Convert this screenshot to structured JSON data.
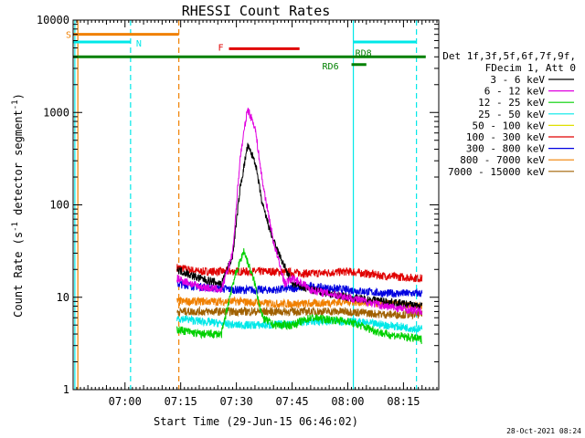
{
  "chart_data": {
    "type": "line",
    "title": "RHESSI Count Rates",
    "xlabel": "Start Time (29-Jun-15 06:46:02)",
    "ylabel": "Count Rate (s",
    "ylabel_sup": "-1",
    "ylabel_rest": " detector segment",
    "ylabel_sup2": "-1",
    "ylabel_end": ")",
    "x_ticks": [
      "07:00",
      "07:15",
      "07:30",
      "07:45",
      "08:00",
      "08:15"
    ],
    "x_tick_minutes": [
      420,
      435,
      450,
      465,
      480,
      495
    ],
    "xlim_minutes": [
      406.03,
      504.5
    ],
    "y_scale": "log",
    "ylim": [
      1,
      10000
    ],
    "y_ticks": [
      "1",
      "10",
      "100",
      "1000",
      "10000"
    ],
    "y_tick_values": [
      1,
      10,
      100,
      1000,
      10000
    ],
    "legend": {
      "header": [
        "Det 1f,3f,5f,6f,7f,9f,",
        "FDecim 1, Att 0"
      ],
      "entries": [
        {
          "label": "3 - 6 keV",
          "color": "#000000"
        },
        {
          "label": "6 - 12 keV",
          "color": "#e000e0"
        },
        {
          "label": "12 - 25 keV",
          "color": "#00d000"
        },
        {
          "label": "25 - 50 keV",
          "color": "#00e8e8"
        },
        {
          "label": "50 - 100 keV",
          "color": "#e0e000"
        },
        {
          "label": "100 - 300 keV",
          "color": "#e00000"
        },
        {
          "label": "300 - 800 keV",
          "color": "#0000e0"
        },
        {
          "label": "800 - 7000 keV",
          "color": "#f08000"
        },
        {
          "label": "7000 - 15000 keV",
          "color": "#a06000"
        }
      ]
    },
    "series": [
      {
        "name": "100 - 300 keV",
        "color": "#e00000",
        "x": [
          434,
          440,
          450,
          460,
          470,
          480,
          490,
          500
        ],
        "y": [
          21,
          19,
          19,
          19,
          18,
          19,
          17,
          16
        ]
      },
      {
        "name": "300 - 800 keV",
        "color": "#0000e0",
        "x": [
          434,
          440,
          450,
          460,
          470,
          480,
          490,
          500
        ],
        "y": [
          14,
          13,
          12,
          12,
          13,
          12,
          11,
          11
        ]
      },
      {
        "name": "800 - 7000 keV",
        "color": "#f08000",
        "x": [
          434,
          440,
          450,
          460,
          470,
          480,
          490,
          500
        ],
        "y": [
          9,
          9,
          9,
          8.5,
          8.5,
          9,
          8.5,
          8
        ]
      },
      {
        "name": "7000 - 15000 keV",
        "color": "#a06000",
        "x": [
          434,
          440,
          450,
          460,
          470,
          480,
          490,
          500
        ],
        "y": [
          7,
          7,
          7,
          7,
          7,
          7,
          6.5,
          6.5
        ]
      },
      {
        "name": "25 - 50 keV",
        "color": "#00e8e8",
        "x": [
          434,
          440,
          450,
          460,
          470,
          480,
          490,
          500
        ],
        "y": [
          6,
          5.5,
          5,
          5,
          5.5,
          5.5,
          5,
          4.5
        ]
      },
      {
        "name": "12 - 25 keV",
        "color": "#00d000",
        "x": [
          434,
          440,
          446,
          449,
          452,
          455,
          457,
          460,
          465,
          470,
          480,
          490,
          500
        ],
        "y": [
          4.5,
          4,
          4,
          14,
          32,
          14,
          6,
          5,
          5,
          6,
          5.5,
          4,
          3.5
        ]
      },
      {
        "name": "3 - 6 keV",
        "color": "#000000",
        "x": [
          434,
          440,
          446,
          449,
          451,
          453,
          455,
          457,
          460,
          465,
          470,
          480,
          490,
          500
        ],
        "y": [
          20,
          16,
          14,
          28,
          150,
          430,
          300,
          100,
          40,
          14,
          12,
          10,
          9,
          8
        ]
      },
      {
        "name": "6 - 12 keV",
        "color": "#e000e0",
        "x": [
          434,
          440,
          446,
          449,
          451,
          453,
          455,
          457,
          460,
          463,
          465,
          468,
          470,
          480,
          490,
          500
        ],
        "y": [
          16,
          13,
          12,
          30,
          320,
          1100,
          700,
          180,
          40,
          14,
          16,
          14,
          12,
          10,
          8,
          7
        ]
      }
    ],
    "attenuator_bars": [
      {
        "label": "S",
        "color": "#f08000",
        "x_start": 406.03,
        "x_end": 434.5,
        "level": 7000
      },
      {
        "label": "N",
        "color": "#00e8e8",
        "x_start": 406.03,
        "x_end": 421.5,
        "level": 5800
      },
      {
        "label": "N",
        "color": "#00e8e8",
        "x_start": 481.5,
        "x_end": 498.5,
        "level": 5800
      },
      {
        "label": "F",
        "color": "#e00000",
        "x_start": 448.0,
        "x_end": 467.0,
        "level": 4900
      },
      {
        "label": "RD8",
        "color": "#008000",
        "x_start": 406.03,
        "x_end": 501.0,
        "level": 4000
      },
      {
        "label": "RD6",
        "color": "#008000",
        "x_start": 481.0,
        "x_end": 485.0,
        "level": 3300
      }
    ],
    "vertical_lines": [
      {
        "color": "#00e8e8",
        "x": 406.5,
        "style": "solid"
      },
      {
        "color": "#f08000",
        "x": 407.3,
        "style": "solid"
      },
      {
        "color": "#00e8e8",
        "x": 421.5,
        "style": "dashed"
      },
      {
        "color": "#f08000",
        "x": 434.5,
        "style": "dashed"
      },
      {
        "color": "#00e8e8",
        "x": 481.5,
        "style": "solid"
      },
      {
        "color": "#00e8e8",
        "x": 498.5,
        "style": "dashed"
      }
    ]
  },
  "footer": {
    "timestamp": "28-Oct-2021 08:24"
  }
}
